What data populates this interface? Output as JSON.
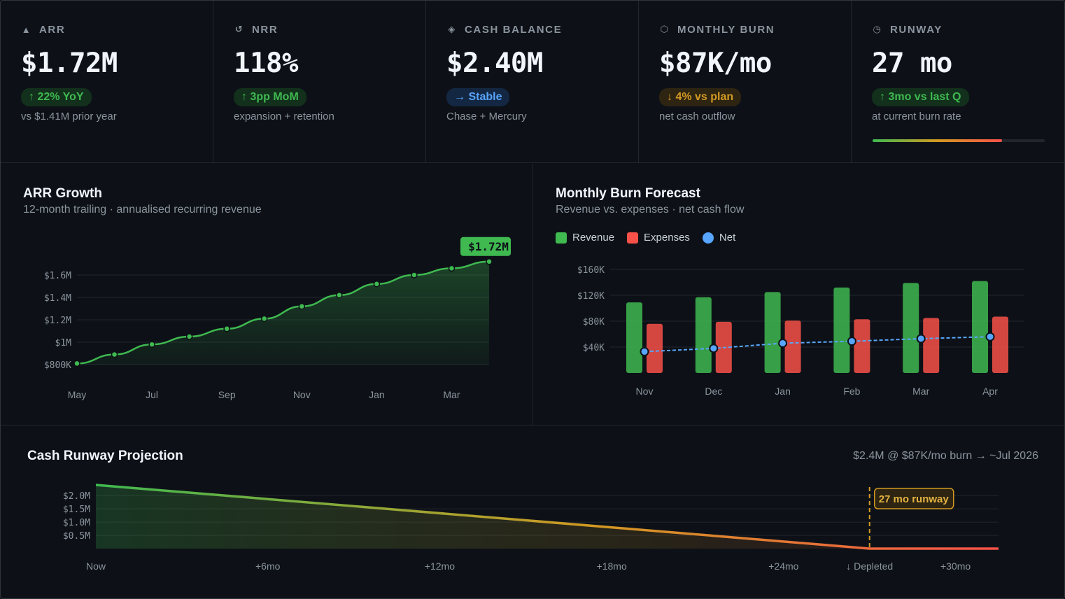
{
  "kpis": [
    {
      "icon": "triangle-up-icon",
      "glyph": "▲",
      "label": "ARR",
      "value": "$1.72M",
      "badge": "↑ 22% YoY",
      "badge_color": "#3fb950",
      "badge_bg": "#12301c",
      "sub": "vs $1.41M prior year"
    },
    {
      "icon": "refresh-icon",
      "glyph": "↺",
      "label": "NRR",
      "value": "118%",
      "badge": "↑ 3pp MoM",
      "badge_color": "#3fb950",
      "badge_bg": "#12301c",
      "sub": "expansion + retention"
    },
    {
      "icon": "diamond-icon",
      "glyph": "◈",
      "label": "CASH BALANCE",
      "value": "$2.40M",
      "badge": "→ Stable",
      "badge_color": "#58a6ff",
      "badge_bg": "#132742",
      "sub": "Chase + Mercury"
    },
    {
      "icon": "hexagon-icon",
      "glyph": "⬡",
      "label": "MONTHLY BURN",
      "value": "$87K/mo",
      "badge": "↓ 4% vs plan",
      "badge_color": "#d29922",
      "badge_bg": "#2e2412",
      "sub": "net cash outflow"
    },
    {
      "icon": "clock-icon",
      "glyph": "◷",
      "label": "RUNWAY",
      "value": "27 mo",
      "badge": "↑ 3mo vs last Q",
      "badge_color": "#3fb950",
      "badge_bg": "#12301c",
      "sub": "at current burn rate"
    }
  ],
  "runway_progress": 0.75,
  "colors": {
    "green": "#3fb950",
    "red": "#f85149",
    "blue": "#58a6ff",
    "amber": "#d29922",
    "grid": "#21262d"
  },
  "arr_panel": {
    "title": "ARR Growth",
    "subtitle": "12-month trailing · annualised recurring revenue",
    "callout": "$1.72M"
  },
  "burn_panel": {
    "title": "Monthly Burn Forecast",
    "subtitle": "Revenue vs. expenses · net cash flow",
    "legend": {
      "revenue": "Revenue",
      "expenses": "Expenses",
      "net": "Net"
    }
  },
  "cash_panel": {
    "title": "Cash Runway Projection",
    "note": "$2.4M @ $87K/mo burn → ~Jul 2026",
    "marker_label": "27 mo runway"
  },
  "chart_data": [
    {
      "type": "area",
      "title": "ARR Growth",
      "subtitle": "12-month trailing · annualised recurring revenue",
      "unit": "$M",
      "x": [
        "May",
        "Jun",
        "Jul",
        "Aug",
        "Sep",
        "Oct",
        "Nov",
        "Dec",
        "Jan",
        "Feb",
        "Mar",
        "Apr"
      ],
      "values": [
        0.81,
        0.89,
        0.98,
        1.05,
        1.12,
        1.21,
        1.32,
        1.42,
        1.52,
        1.6,
        1.66,
        1.72
      ],
      "ylim": [
        0.8,
        1.6
      ],
      "yticks": [
        0.8,
        1.0,
        1.2,
        1.4,
        1.6
      ],
      "ytick_labels": [
        "$800K",
        "$1M",
        "$1.2M",
        "$1.4M",
        "$1.6M"
      ],
      "xtick_labels": [
        "May",
        "Jul",
        "Sep",
        "Nov",
        "Jan",
        "Mar"
      ],
      "annotation": "$1.72M"
    },
    {
      "type": "bar",
      "title": "Monthly Burn Forecast",
      "subtitle": "Revenue vs. expenses · net cash flow",
      "categories": [
        "Nov",
        "Dec",
        "Jan",
        "Feb",
        "Mar",
        "Apr"
      ],
      "series": [
        {
          "name": "Revenue",
          "values": [
            109,
            117,
            125,
            132,
            139,
            142
          ]
        },
        {
          "name": "Expenses",
          "values": [
            76,
            79,
            81,
            83,
            85,
            87
          ]
        },
        {
          "name": "Net",
          "values": [
            33,
            38,
            46,
            49,
            53,
            56
          ]
        }
      ],
      "unit": "$K",
      "ylim": [
        0,
        160
      ],
      "yticks": [
        40,
        80,
        120,
        160
      ],
      "ytick_labels": [
        "$40K",
        "$80K",
        "$120K",
        "$160K"
      ]
    },
    {
      "type": "area",
      "title": "Cash Runway Projection",
      "subtitle": "$2.4M @ $87K/mo burn → ~Jul 2026",
      "unit": "$M",
      "x_months": [
        0,
        27,
        31.5
      ],
      "values": [
        2.4,
        0,
        0
      ],
      "xlim": [
        0,
        31.5
      ],
      "ylim": [
        0,
        2.4
      ],
      "yticks": [
        0.5,
        1.0,
        1.5,
        2.0
      ],
      "ytick_labels": [
        "$0.5M",
        "$1.0M",
        "$1.5M",
        "$2.0M"
      ],
      "xticks": [
        0,
        6,
        12,
        18,
        24,
        30
      ],
      "xtick_labels": [
        "Now",
        "+6mo",
        "+12mo",
        "+18mo",
        "+24mo",
        "+30mo"
      ],
      "depleted_month": 27,
      "depleted_label": "↓ Depleted",
      "marker_label": "27 mo runway"
    }
  ]
}
